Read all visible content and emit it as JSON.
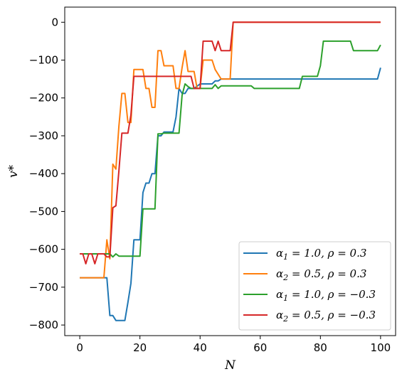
{
  "chart_data": {
    "type": "line",
    "xlabel": "N",
    "ylabel": "v*",
    "xlim": [
      -5,
      105
    ],
    "ylim": [
      -828,
      40
    ],
    "xticks": [
      0,
      20,
      40,
      60,
      80,
      100
    ],
    "yticks": [
      0,
      -100,
      -200,
      -300,
      -400,
      -500,
      -600,
      -700,
      -800
    ],
    "grid": false,
    "legend_position": "lower-right",
    "series": [
      {
        "name": "α₁ = 1.0, ρ = 0.3",
        "legend_main": "α",
        "legend_sub": "1",
        "legend_rest": " = 1.0, ρ = 0.3",
        "color": "#1f77b4",
        "points": [
          [
            0,
            -675
          ],
          [
            9,
            -675
          ],
          [
            10,
            -775
          ],
          [
            11,
            -775
          ],
          [
            12,
            -788
          ],
          [
            15,
            -788
          ],
          [
            16,
            -740
          ],
          [
            17,
            -690
          ],
          [
            18,
            -575
          ],
          [
            20,
            -575
          ],
          [
            21,
            -450
          ],
          [
            22,
            -425
          ],
          [
            23,
            -425
          ],
          [
            24,
            -400
          ],
          [
            25,
            -400
          ],
          [
            26,
            -300
          ],
          [
            27,
            -300
          ],
          [
            28,
            -290
          ],
          [
            31,
            -290
          ],
          [
            32,
            -250
          ],
          [
            33,
            -175
          ],
          [
            34,
            -188
          ],
          [
            35,
            -188
          ],
          [
            36,
            -175
          ],
          [
            37,
            -175
          ],
          [
            38,
            -175
          ],
          [
            40,
            -163
          ],
          [
            44,
            -163
          ],
          [
            45,
            -155
          ],
          [
            46,
            -155
          ],
          [
            47,
            -150
          ],
          [
            99,
            -150
          ],
          [
            100,
            -120
          ]
        ]
      },
      {
        "name": "α₂ = 0.5, ρ = 0.3",
        "legend_main": "α",
        "legend_sub": "2",
        "legend_rest": " = 0.5, ρ = 0.3",
        "color": "#ff7f0e",
        "points": [
          [
            0,
            -675
          ],
          [
            8,
            -675
          ],
          [
            9,
            -575
          ],
          [
            10,
            -625
          ],
          [
            11,
            -375
          ],
          [
            12,
            -388
          ],
          [
            13,
            -275
          ],
          [
            14,
            -188
          ],
          [
            15,
            -188
          ],
          [
            16,
            -265
          ],
          [
            17,
            -265
          ],
          [
            18,
            -125
          ],
          [
            21,
            -125
          ],
          [
            22,
            -175
          ],
          [
            23,
            -175
          ],
          [
            24,
            -225
          ],
          [
            25,
            -225
          ],
          [
            26,
            -75
          ],
          [
            27,
            -75
          ],
          [
            28,
            -115
          ],
          [
            31,
            -115
          ],
          [
            32,
            -175
          ],
          [
            33,
            -175
          ],
          [
            34,
            -120
          ],
          [
            35,
            -75
          ],
          [
            36,
            -130
          ],
          [
            38,
            -130
          ],
          [
            39,
            -175
          ],
          [
            40,
            -175
          ],
          [
            41,
            -100
          ],
          [
            44,
            -100
          ],
          [
            45,
            -125
          ],
          [
            47,
            -150
          ],
          [
            50,
            -150
          ],
          [
            51,
            0
          ],
          [
            100,
            0
          ]
        ]
      },
      {
        "name": "α₁ = 1.0, ρ = −0.3",
        "legend_main": "α",
        "legend_sub": "1",
        "legend_rest": " = 1.0, ρ = −0.3",
        "color": "#2ca02c",
        "points": [
          [
            0,
            -612
          ],
          [
            10,
            -612
          ],
          [
            11,
            -620
          ],
          [
            12,
            -612
          ],
          [
            13,
            -618
          ],
          [
            20,
            -618
          ],
          [
            21,
            -493
          ],
          [
            25,
            -493
          ],
          [
            26,
            -295
          ],
          [
            27,
            -295
          ],
          [
            28,
            -293
          ],
          [
            33,
            -293
          ],
          [
            34,
            -193
          ],
          [
            35,
            -163
          ],
          [
            36,
            -170
          ],
          [
            37,
            -175
          ],
          [
            44,
            -175
          ],
          [
            45,
            -165
          ],
          [
            46,
            -175
          ],
          [
            47,
            -168
          ],
          [
            57,
            -168
          ],
          [
            58,
            -175
          ],
          [
            73,
            -175
          ],
          [
            74,
            -143
          ],
          [
            79,
            -143
          ],
          [
            80,
            -115
          ],
          [
            81,
            -50
          ],
          [
            90,
            -50
          ],
          [
            91,
            -75
          ],
          [
            99,
            -75
          ],
          [
            100,
            -60
          ]
        ]
      },
      {
        "name": "α₂ = 0.5, ρ = −0.3",
        "legend_main": "α",
        "legend_sub": "2",
        "legend_rest": " = 0.5, ρ = −0.3",
        "color": "#d62728",
        "points": [
          [
            0,
            -612
          ],
          [
            1,
            -612
          ],
          [
            2,
            -638
          ],
          [
            3,
            -612
          ],
          [
            4,
            -612
          ],
          [
            5,
            -638
          ],
          [
            6,
            -612
          ],
          [
            8,
            -612
          ],
          [
            9,
            -620
          ],
          [
            10,
            -620
          ],
          [
            11,
            -490
          ],
          [
            12,
            -485
          ],
          [
            13,
            -393
          ],
          [
            14,
            -293
          ],
          [
            16,
            -293
          ],
          [
            17,
            -245
          ],
          [
            18,
            -143
          ],
          [
            37,
            -143
          ],
          [
            38,
            -175
          ],
          [
            40,
            -175
          ],
          [
            41,
            -50
          ],
          [
            44,
            -50
          ],
          [
            45,
            -75
          ],
          [
            46,
            -50
          ],
          [
            47,
            -75
          ],
          [
            50,
            -75
          ],
          [
            51,
            0
          ],
          [
            100,
            0
          ]
        ]
      }
    ]
  }
}
